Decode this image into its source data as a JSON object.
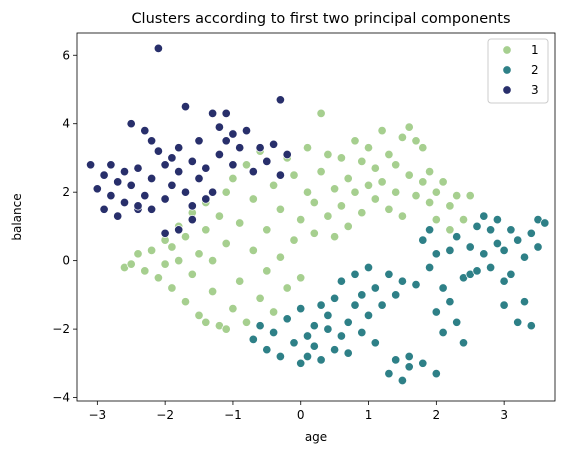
{
  "chart_data": {
    "type": "scatter",
    "title": "Clusters according to first two principal components",
    "xlabel": "age",
    "ylabel": "balance",
    "xlim": [
      -3.3,
      3.75
    ],
    "ylim": [
      -4.1,
      6.65
    ],
    "xticks": [
      -3,
      -2,
      -1,
      0,
      1,
      2,
      3
    ],
    "yticks": [
      -4,
      -2,
      0,
      2,
      4,
      6
    ],
    "grid": false,
    "legend_placement": "top-right",
    "series": [
      {
        "name": "1",
        "color": "#a6cf8f",
        "points": [
          [
            -2.6,
            -0.2
          ],
          [
            -2.5,
            -0.1
          ],
          [
            -2.4,
            0.2
          ],
          [
            -2.3,
            -0.3
          ],
          [
            -2.2,
            0.3
          ],
          [
            -2.1,
            -0.5
          ],
          [
            -2.0,
            0.6
          ],
          [
            -2.0,
            -0.1
          ],
          [
            -1.9,
            0.4
          ],
          [
            -1.9,
            -0.8
          ],
          [
            -1.8,
            1.0
          ],
          [
            -1.8,
            0.0
          ],
          [
            -1.7,
            -1.2
          ],
          [
            -1.7,
            0.7
          ],
          [
            -1.6,
            1.4
          ],
          [
            -1.6,
            -0.4
          ],
          [
            -1.5,
            0.2
          ],
          [
            -1.5,
            -1.6
          ],
          [
            -1.4,
            1.7
          ],
          [
            -1.4,
            0.9
          ],
          [
            -1.3,
            -0.9
          ],
          [
            -1.3,
            0.0
          ],
          [
            -1.2,
            1.3
          ],
          [
            -1.2,
            -1.9
          ],
          [
            -1.1,
            2.0
          ],
          [
            -1.1,
            0.5
          ],
          [
            -1.0,
            -1.4
          ],
          [
            -1.0,
            2.4
          ],
          [
            -0.9,
            1.1
          ],
          [
            -0.9,
            -0.6
          ],
          [
            -0.8,
            2.8
          ],
          [
            -0.8,
            -1.8
          ],
          [
            -0.7,
            0.3
          ],
          [
            -0.7,
            1.8
          ],
          [
            -0.6,
            -1.1
          ],
          [
            -0.6,
            3.2
          ],
          [
            -0.5,
            0.9
          ],
          [
            -0.5,
            -0.3
          ],
          [
            -0.4,
            2.2
          ],
          [
            -0.4,
            -1.5
          ],
          [
            -0.3,
            1.5
          ],
          [
            -0.3,
            0.1
          ],
          [
            -0.2,
            3.0
          ],
          [
            -0.2,
            -0.8
          ],
          [
            -0.1,
            2.5
          ],
          [
            -0.1,
            0.6
          ],
          [
            0.0,
            1.2
          ],
          [
            0.0,
            -0.5
          ],
          [
            0.1,
            3.3
          ],
          [
            0.1,
            2.0
          ],
          [
            0.2,
            0.8
          ],
          [
            0.2,
            1.7
          ],
          [
            0.3,
            4.3
          ],
          [
            0.3,
            2.6
          ],
          [
            0.4,
            1.3
          ],
          [
            0.4,
            3.1
          ],
          [
            0.5,
            2.1
          ],
          [
            0.5,
            0.7
          ],
          [
            0.6,
            3.0
          ],
          [
            0.6,
            1.6
          ],
          [
            0.7,
            2.4
          ],
          [
            0.7,
            1.0
          ],
          [
            0.8,
            3.5
          ],
          [
            0.8,
            2.0
          ],
          [
            0.9,
            1.4
          ],
          [
            0.9,
            2.9
          ],
          [
            1.0,
            3.3
          ],
          [
            1.0,
            2.2
          ],
          [
            1.1,
            1.8
          ],
          [
            1.1,
            2.7
          ],
          [
            1.2,
            3.8
          ],
          [
            1.2,
            2.3
          ],
          [
            1.3,
            1.5
          ],
          [
            1.3,
            3.1
          ],
          [
            1.4,
            2.0
          ],
          [
            1.4,
            2.8
          ],
          [
            1.5,
            3.6
          ],
          [
            1.5,
            1.3
          ],
          [
            1.6,
            2.5
          ],
          [
            1.6,
            3.9
          ],
          [
            1.7,
            3.5
          ],
          [
            1.7,
            1.9
          ],
          [
            1.8,
            2.3
          ],
          [
            1.8,
            3.3
          ],
          [
            1.9,
            1.7
          ],
          [
            1.9,
            2.6
          ],
          [
            2.0,
            2.0
          ],
          [
            2.0,
            1.2
          ],
          [
            2.1,
            2.3
          ],
          [
            2.2,
            1.6
          ],
          [
            2.3,
            1.9
          ],
          [
            2.4,
            1.2
          ],
          [
            2.5,
            1.9
          ],
          [
            2.2,
            0.9
          ],
          [
            -1.1,
            -2.0
          ],
          [
            -1.4,
            -1.8
          ]
        ]
      },
      {
        "name": "2",
        "color": "#2e8087",
        "points": [
          [
            -0.7,
            -2.3
          ],
          [
            -0.6,
            -1.9
          ],
          [
            -0.5,
            -2.6
          ],
          [
            -0.4,
            -2.1
          ],
          [
            -0.3,
            -2.8
          ],
          [
            -0.2,
            -1.7
          ],
          [
            -0.1,
            -2.4
          ],
          [
            0.0,
            -3.0
          ],
          [
            0.0,
            -1.4
          ],
          [
            0.1,
            -2.2
          ],
          [
            0.1,
            -2.8
          ],
          [
            0.2,
            -1.9
          ],
          [
            0.2,
            -2.5
          ],
          [
            0.3,
            -1.3
          ],
          [
            0.3,
            -2.9
          ],
          [
            0.4,
            -2.0
          ],
          [
            0.4,
            -1.6
          ],
          [
            0.5,
            -2.6
          ],
          [
            0.5,
            -1.1
          ],
          [
            0.6,
            -2.2
          ],
          [
            0.6,
            -0.6
          ],
          [
            0.7,
            -1.8
          ],
          [
            0.7,
            -2.7
          ],
          [
            0.8,
            -1.3
          ],
          [
            0.8,
            -0.4
          ],
          [
            0.9,
            -2.1
          ],
          [
            0.9,
            -1.0
          ],
          [
            1.0,
            -1.6
          ],
          [
            1.0,
            -0.2
          ],
          [
            1.1,
            -2.4
          ],
          [
            1.1,
            -0.8
          ],
          [
            1.2,
            -1.3
          ],
          [
            1.3,
            -0.4
          ],
          [
            1.3,
            -3.3
          ],
          [
            1.4,
            -1.0
          ],
          [
            1.4,
            -2.9
          ],
          [
            1.5,
            -0.6
          ],
          [
            1.5,
            -3.5
          ],
          [
            1.6,
            -2.8
          ],
          [
            1.7,
            -0.7
          ],
          [
            1.8,
            0.6
          ],
          [
            1.8,
            -3.0
          ],
          [
            1.9,
            -0.2
          ],
          [
            1.9,
            0.9
          ],
          [
            2.0,
            -1.5
          ],
          [
            2.0,
            0.2
          ],
          [
            2.1,
            -0.8
          ],
          [
            2.1,
            -2.1
          ],
          [
            2.2,
            0.3
          ],
          [
            2.2,
            -1.2
          ],
          [
            2.3,
            0.7
          ],
          [
            2.3,
            -1.8
          ],
          [
            2.4,
            -0.5
          ],
          [
            2.4,
            -2.4
          ],
          [
            2.5,
            -0.4
          ],
          [
            2.5,
            0.4
          ],
          [
            2.6,
            1.0
          ],
          [
            2.6,
            -0.3
          ],
          [
            2.7,
            1.3
          ],
          [
            2.7,
            0.2
          ],
          [
            2.8,
            0.9
          ],
          [
            2.8,
            -0.2
          ],
          [
            2.9,
            0.5
          ],
          [
            2.9,
            1.2
          ],
          [
            3.0,
            0.3
          ],
          [
            3.0,
            -1.3
          ],
          [
            3.1,
            0.9
          ],
          [
            3.1,
            -0.4
          ],
          [
            3.2,
            -1.8
          ],
          [
            3.2,
            0.6
          ],
          [
            3.3,
            0.1
          ],
          [
            3.3,
            -1.2
          ],
          [
            3.4,
            0.8
          ],
          [
            3.4,
            -1.9
          ],
          [
            3.5,
            1.2
          ],
          [
            3.5,
            0.4
          ],
          [
            3.6,
            1.1
          ],
          [
            3.0,
            -0.6
          ],
          [
            2.0,
            -3.3
          ],
          [
            1.6,
            -3.1
          ]
        ]
      },
      {
        "name": "3",
        "color": "#282f6b",
        "points": [
          [
            -3.1,
            2.8
          ],
          [
            -3.0,
            2.1
          ],
          [
            -2.9,
            2.5
          ],
          [
            -2.9,
            1.5
          ],
          [
            -2.8,
            2.8
          ],
          [
            -2.8,
            1.9
          ],
          [
            -2.7,
            2.3
          ],
          [
            -2.7,
            1.3
          ],
          [
            -2.6,
            2.6
          ],
          [
            -2.6,
            1.7
          ],
          [
            -2.5,
            4.0
          ],
          [
            -2.5,
            2.2
          ],
          [
            -2.4,
            1.5
          ],
          [
            -2.4,
            2.7
          ],
          [
            -2.3,
            3.8
          ],
          [
            -2.3,
            1.9
          ],
          [
            -2.2,
            3.5
          ],
          [
            -2.2,
            2.4
          ],
          [
            -2.1,
            6.2
          ],
          [
            -2.1,
            3.2
          ],
          [
            -2.0,
            2.8
          ],
          [
            -2.0,
            1.8
          ],
          [
            -1.9,
            3.0
          ],
          [
            -1.9,
            2.2
          ],
          [
            -1.8,
            2.6
          ],
          [
            -1.8,
            3.3
          ],
          [
            -1.7,
            4.5
          ],
          [
            -1.7,
            2.0
          ],
          [
            -1.6,
            2.9
          ],
          [
            -1.6,
            1.6
          ],
          [
            -1.5,
            2.4
          ],
          [
            -1.5,
            3.5
          ],
          [
            -1.4,
            1.8
          ],
          [
            -1.4,
            2.7
          ],
          [
            -1.3,
            4.3
          ],
          [
            -1.3,
            2.0
          ],
          [
            -1.2,
            3.9
          ],
          [
            -1.2,
            3.1
          ],
          [
            -1.1,
            4.3
          ],
          [
            -1.1,
            3.5
          ],
          [
            -1.0,
            3.7
          ],
          [
            -1.0,
            2.8
          ],
          [
            -0.9,
            3.3
          ],
          [
            -0.8,
            3.8
          ],
          [
            -0.7,
            2.6
          ],
          [
            -0.6,
            3.3
          ],
          [
            -0.5,
            2.9
          ],
          [
            -0.4,
            3.4
          ],
          [
            -0.3,
            4.7
          ],
          [
            -0.3,
            2.5
          ],
          [
            -0.2,
            3.1
          ],
          [
            -1.8,
            0.9
          ],
          [
            -1.6,
            1.2
          ],
          [
            -2.2,
            1.5
          ],
          [
            -2.0,
            0.8
          ],
          [
            -2.4,
            1.6
          ]
        ]
      }
    ],
    "legend": [
      "1",
      "2",
      "3"
    ]
  }
}
